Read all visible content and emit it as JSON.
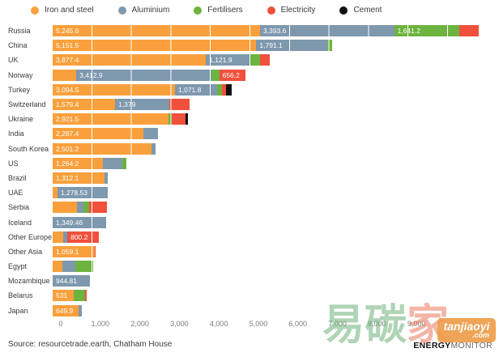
{
  "chart_data": {
    "type": "bar",
    "stacked": true,
    "orientation": "horizontal",
    "legend_position": "top",
    "grid": "white vertical lines every 1000 over bars",
    "xlim": [
      0,
      10000
    ],
    "x_ticks": [
      "0",
      "1,000",
      "2,000",
      "3,000",
      "4,000",
      "5,000",
      "6,000",
      "7,000",
      "8,000",
      "9,000",
      "10,000"
    ],
    "categories": [
      "Russia",
      "China",
      "UK",
      "Norway",
      "Turkey",
      "Switzerland",
      "Ukraine",
      "India",
      "South Korea",
      "US",
      "Brazil",
      "UAE",
      "Serbia",
      "Iceland",
      "Other Europe",
      "Other Asia",
      "Egypt",
      "Mozambique",
      "Belarus",
      "Japan"
    ],
    "series": [
      {
        "name": "Iron and steel",
        "color": "#F9A03C",
        "values": [
          5245.6,
          5151.5,
          3877.4,
          600,
          3094.5,
          1579.4,
          2921.5,
          2287.4,
          2501.2,
          1264.2,
          1312.1,
          120,
          615,
          0,
          270,
          1059.1,
          250,
          0,
          531,
          649.9
        ]
      },
      {
        "name": "Aluminium",
        "color": "#7E98AE",
        "values": [
          3393.6,
          1791.1,
          1121.9,
          3412.9,
          1071.8,
          1379,
          0,
          380,
          110,
          500,
          90,
          1278.53,
          170,
          1349.46,
          100,
          0,
          330,
          944.81,
          0,
          80
        ]
      },
      {
        "name": "Fertilisers",
        "color": "#6DB33F",
        "values": [
          1641.2,
          120,
          240,
          200,
          120,
          0,
          100,
          0,
          0,
          100,
          0,
          0,
          140,
          0,
          0,
          0,
          450,
          0,
          280,
          0
        ]
      },
      {
        "name": "Electricity",
        "color": "#F0503C",
        "values": [
          490,
          0,
          260,
          656.2,
          100,
          500,
          330,
          0,
          0,
          0,
          0,
          0,
          445,
          0,
          800.2,
          30,
          0,
          0,
          50,
          0
        ]
      },
      {
        "name": "Cement",
        "color": "#101010",
        "values": [
          0,
          0,
          0,
          0,
          140,
          0,
          80,
          0,
          0,
          0,
          0,
          0,
          0,
          0,
          0,
          0,
          0,
          0,
          0,
          0
        ]
      }
    ],
    "value_labels": [
      [
        "5,245.6",
        "3,393.6",
        "1,641.2",
        null,
        null
      ],
      [
        "5,151.5",
        "1,791.1",
        null,
        null,
        null
      ],
      [
        "3,877.4",
        "1,121.9",
        null,
        null,
        null
      ],
      [
        null,
        "3,412.9",
        null,
        "656.2",
        null
      ],
      [
        "3,094.5",
        "1,071.8",
        null,
        null,
        null
      ],
      [
        "1,579.4",
        "1,379",
        null,
        null,
        null
      ],
      [
        "2,921.5",
        null,
        null,
        null,
        null
      ],
      [
        "2,287.4",
        null,
        null,
        null,
        null
      ],
      [
        "2,501.2",
        null,
        null,
        null,
        null
      ],
      [
        "1,264.2",
        null,
        null,
        null,
        null
      ],
      [
        "1,312.1",
        null,
        null,
        null,
        null
      ],
      [
        null,
        "1,278.53",
        null,
        null,
        null
      ],
      [
        null,
        null,
        null,
        null,
        null
      ],
      [
        null,
        "1,349.46",
        null,
        null,
        null
      ],
      [
        null,
        null,
        null,
        "800.2",
        null
      ],
      [
        "1,059.1",
        null,
        null,
        null,
        null
      ],
      [
        null,
        null,
        null,
        null,
        null
      ],
      [
        null,
        "944.81",
        null,
        null,
        null
      ],
      [
        "531",
        null,
        null,
        null,
        null
      ],
      [
        "649.9",
        null,
        null,
        null,
        null
      ]
    ]
  },
  "footer": {
    "source": "Source: resourcetrade.earth, Chatham House",
    "brand_bold": "ENERGY",
    "brand_light": "MONITOR"
  },
  "watermark": {
    "char1": "易",
    "char2": "碳",
    "char3": "家",
    "box_line1": "tanjiaoyi",
    "box_line2": ".com"
  }
}
